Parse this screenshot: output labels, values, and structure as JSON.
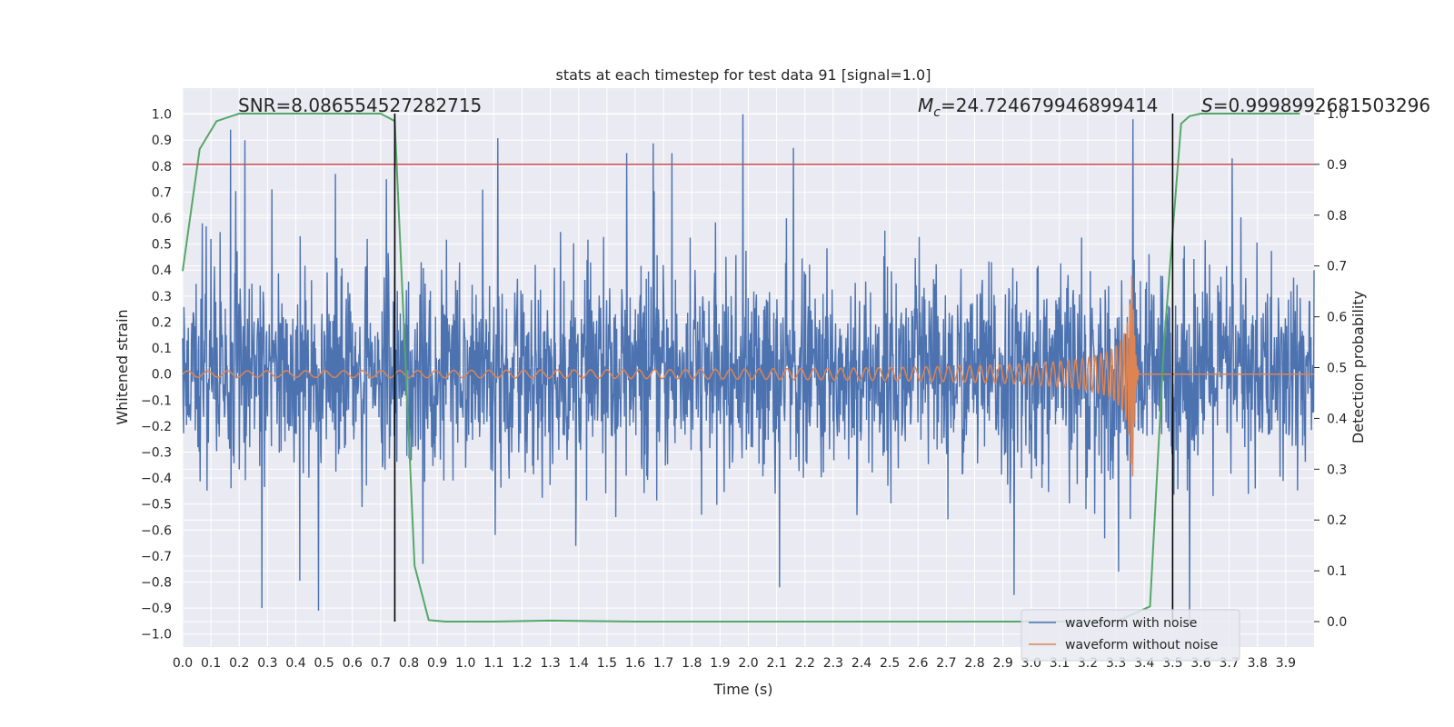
{
  "chart_data": {
    "type": "line",
    "title": "stats at each timestep for test data 91 [signal=1.0]",
    "xlabel": "Time (s)",
    "ylabel": "Whitened strain",
    "y2label": "Detection probability",
    "xlim": [
      0.0,
      4.0
    ],
    "ylim": [
      -1.05,
      1.1
    ],
    "y2lim": [
      -0.05,
      1.05
    ],
    "x_ticks": [
      "0.0",
      "0.1",
      "0.2",
      "0.3",
      "0.4",
      "0.5",
      "0.6",
      "0.7",
      "0.8",
      "0.9",
      "1.0",
      "1.1",
      "1.2",
      "1.3",
      "1.4",
      "1.5",
      "1.6",
      "1.7",
      "1.8",
      "1.9",
      "2.0",
      "2.1",
      "2.2",
      "2.3",
      "2.4",
      "2.5",
      "2.6",
      "2.7",
      "2.8",
      "2.9",
      "3.0",
      "3.1",
      "3.2",
      "3.3",
      "3.4",
      "3.5",
      "3.6",
      "3.7",
      "3.8",
      "3.9"
    ],
    "y_ticks": [
      "1.0",
      "0.9",
      "0.8",
      "0.7",
      "0.6",
      "0.5",
      "0.4",
      "0.3",
      "0.2",
      "0.1",
      "0.0",
      "−0.1",
      "−0.2",
      "−0.3",
      "−0.4",
      "−0.5",
      "−0.6",
      "−0.7",
      "−0.8",
      "−0.9",
      "−1.0"
    ],
    "y2_ticks": [
      "1.0",
      "0.9",
      "0.8",
      "0.7",
      "0.6",
      "0.5",
      "0.4",
      "0.3",
      "0.2",
      "0.1",
      "0.0"
    ],
    "grid": true,
    "legend_position": "bottom-right",
    "annotations": {
      "snr": "SNR=8.086554527282715",
      "mc_symbol": "M",
      "mc_sub": "c",
      "mc_value": "=24.724679946899414",
      "s_symbol": "S",
      "s_value": "=0.9998992681503296"
    },
    "threshold_y2": 0.9,
    "vertical_markers_x": [
      0.75,
      3.5
    ],
    "series": [
      {
        "name": "waveform with noise",
        "color": "#4c72b0",
        "kind": "noise",
        "x_range": [
          0.0,
          4.0
        ],
        "spikes": [
          [
            0.07,
            0.58
          ],
          [
            0.1,
            0.52
          ],
          [
            0.17,
            0.94
          ],
          [
            0.22,
            0.9
          ],
          [
            0.28,
            -0.9
          ],
          [
            0.48,
            -0.91
          ],
          [
            0.54,
            0.77
          ],
          [
            0.72,
            0.75
          ],
          [
            1.06,
            0.71
          ],
          [
            1.57,
            0.85
          ],
          [
            1.73,
            0.85
          ],
          [
            1.98,
            1.0
          ],
          [
            2.16,
            0.87
          ],
          [
            2.11,
            -0.82
          ],
          [
            3.36,
            0.98
          ],
          [
            3.56,
            -0.96
          ],
          [
            3.71,
            0.83
          ],
          [
            2.94,
            -0.85
          ],
          [
            0.85,
            -0.73
          ]
        ]
      },
      {
        "name": "waveform without noise",
        "color": "#dd8452",
        "kind": "chirp",
        "x_range": [
          0.0,
          4.0
        ],
        "merger_time": 3.36,
        "peak_amplitude": 0.4
      },
      {
        "name": "",
        "color": "#55a868",
        "kind": "probability",
        "x": [
          0.0,
          0.06,
          0.12,
          0.2,
          0.3,
          0.5,
          0.7,
          0.75,
          0.82,
          0.87,
          0.93,
          1.1,
          1.3,
          1.6,
          2.0,
          2.5,
          3.0,
          3.3,
          3.42,
          3.47,
          3.53,
          3.56,
          3.6,
          3.7,
          3.8,
          3.95
        ],
        "y": [
          0.69,
          0.93,
          0.985,
          1.0,
          1.0,
          1.0,
          1.0,
          0.985,
          0.11,
          0.003,
          0.0,
          0.0,
          0.002,
          0.0,
          0.0,
          0.0,
          0.0,
          0.0,
          0.03,
          0.55,
          0.98,
          0.995,
          1.0,
          1.0,
          1.0,
          1.0
        ]
      }
    ],
    "colors": {
      "plot_bg": "#eaeaf2",
      "grid": "#ffffff",
      "threshold": "#c44e52",
      "marker": "#000000"
    }
  }
}
